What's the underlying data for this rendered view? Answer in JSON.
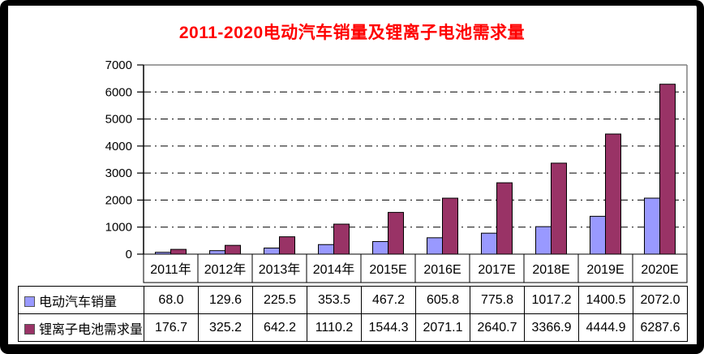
{
  "title": {
    "text": "2011-2020电动汽车销量及锂离子电池需求量",
    "color": "#FF0000"
  },
  "chart_data": {
    "type": "bar",
    "title": "2011-2020电动汽车销量及锂离子电池需求量",
    "categories": [
      "2011年",
      "2012年",
      "2013年",
      "2014年",
      "2015E",
      "2016E",
      "2017E",
      "2018E",
      "2019E",
      "2020E"
    ],
    "series": [
      {
        "name": "电动汽车销量",
        "color": "#9999FF",
        "values": [
          68.0,
          129.6,
          225.5,
          353.5,
          467.2,
          605.8,
          775.8,
          1017.2,
          1400.5,
          2072.0
        ]
      },
      {
        "name": "锂离子电池需求量",
        "color": "#993366",
        "values": [
          176.7,
          325.2,
          642.2,
          1110.2,
          1544.3,
          2071.1,
          2640.7,
          3366.9,
          4444.9,
          6287.6
        ]
      }
    ],
    "xlabel": "",
    "ylabel": "",
    "ylim": [
      0,
      7000
    ],
    "yticks": [
      "0",
      "1000",
      "2000",
      "3000",
      "4000",
      "5000",
      "6000",
      "7000"
    ],
    "grid": "horizontal-dash-dot",
    "legend_position": "bottom-table",
    "bar_outline_color": "#000000",
    "gridline_color": "#000000",
    "plot_border_color": "#808080",
    "axis_color": "#000000",
    "value_format_decimals": 1
  }
}
